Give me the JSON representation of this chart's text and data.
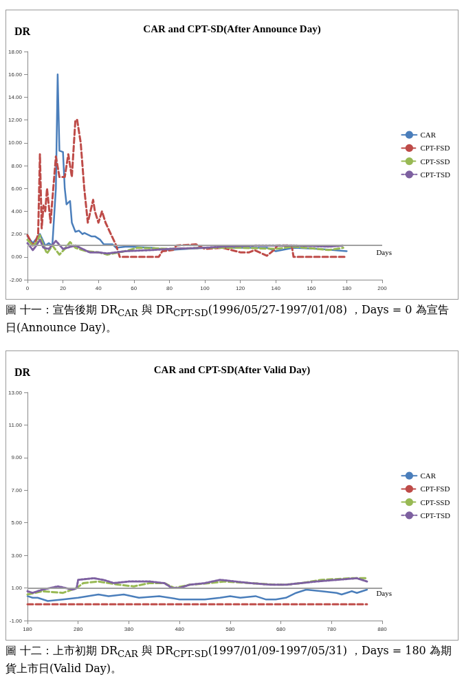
{
  "chart_data": [
    {
      "type": "line",
      "title": "CAR and CPT-SD(After Announce Day)",
      "ylabel": "DR",
      "xlabel": "Days",
      "xlim": [
        0,
        200
      ],
      "xticks": [
        0,
        20,
        40,
        60,
        80,
        100,
        120,
        140,
        160,
        180,
        200
      ],
      "ylim": [
        -2,
        18
      ],
      "yticks": [
        {
          "value": -2,
          "label": "-2.00"
        },
        {
          "value": 0,
          "label": "0.00"
        },
        {
          "value": 2,
          "label": "2.00"
        },
        {
          "value": 4,
          "label": "4.00"
        },
        {
          "value": 6,
          "label": "6.00"
        },
        {
          "value": 8,
          "label": "8.00"
        },
        {
          "value": 10,
          "label": "10.00"
        },
        {
          "value": 12,
          "label": "12.00"
        },
        {
          "value": 14,
          "label": "14.00"
        },
        {
          "value": 16,
          "label": "16.00"
        },
        {
          "value": 18,
          "label": "18.00"
        }
      ],
      "grid": false,
      "legend": "right",
      "marker": "none",
      "ref_lines": [
        {
          "axis": "y",
          "value": 1,
          "color": "#a0a0a0"
        }
      ],
      "annotations": [
        "圖 十一：宣告後期 DR$_{CAR}$ 與 DR$_{CPT-SD}$(1996/05/27-1997/01/08) ，Days = 0 為宣告日(Announce Day)。"
      ],
      "series": [
        {
          "name": "CAR",
          "color": "#4a7ebb",
          "line_style": "solid",
          "x": [
            0,
            3,
            5,
            7,
            10,
            12,
            14,
            16,
            17,
            18,
            20,
            21,
            22,
            24,
            25,
            27,
            29,
            31,
            32,
            36,
            38,
            41,
            43,
            48,
            50,
            56,
            70,
            80,
            100,
            120,
            135,
            140,
            150,
            165,
            180
          ],
          "values": [
            1.8,
            1.2,
            1.6,
            2.0,
            1.0,
            1.2,
            1.0,
            6,
            16,
            9.3,
            9.2,
            6,
            4.6,
            4.9,
            3,
            2.2,
            2.3,
            2.0,
            2.1,
            1.8,
            1.8,
            1.5,
            1.1,
            1.1,
            0.8,
            0.9,
            0.8,
            0.6,
            0.8,
            0.8,
            0.8,
            0.5,
            0.8,
            0.7,
            0.5
          ]
        },
        {
          "name": "CPT-FSD",
          "color": "#be4b48",
          "line_style": "dashed",
          "x": [
            0,
            3,
            5,
            6,
            7,
            8,
            9,
            10,
            11,
            13,
            14,
            16,
            18,
            21,
            23,
            25,
            27,
            28,
            30,
            32,
            34,
            37,
            38,
            40,
            42,
            44,
            47,
            50,
            52,
            74,
            76,
            82,
            84,
            95,
            100,
            110,
            120,
            125,
            128,
            135,
            139,
            141,
            149,
            150,
            180
          ],
          "values": [
            1.9,
            1,
            1.5,
            2,
            9,
            2.5,
            4.5,
            4,
            6,
            3,
            5,
            8.8,
            7,
            7,
            9,
            7,
            12,
            12,
            10,
            6,
            3,
            5,
            4,
            3,
            4,
            3,
            2,
            1,
            0,
            0,
            0.5,
            0.6,
            1.0,
            1.1,
            0.7,
            0.8,
            0.4,
            0.4,
            0.6,
            0.1,
            0.6,
            1.0,
            1.0,
            0,
            0
          ]
        },
        {
          "name": "CPT-SSD",
          "color": "#98b954",
          "line_style": "dashed",
          "x": [
            0,
            3,
            5,
            7,
            9,
            11,
            14,
            18,
            21,
            24,
            27,
            33,
            40,
            45,
            55,
            62,
            80,
            100,
            120,
            140,
            150,
            170,
            178
          ],
          "values": [
            1.5,
            1,
            1.2,
            1.9,
            1.0,
            0.3,
            1.0,
            0.2,
            0.7,
            1.3,
            0.8,
            0.5,
            0.4,
            0.2,
            0.5,
            0.8,
            0.7,
            0.8,
            0.8,
            0.7,
            0.9,
            0.6,
            0.8
          ]
        },
        {
          "name": "CPT-TSD",
          "color": "#7d60a0",
          "line_style": "dotted",
          "x": [
            0,
            3,
            5,
            7,
            9,
            12,
            16,
            20,
            27,
            35,
            40,
            45,
            55,
            70,
            80,
            100,
            110,
            130,
            150,
            170,
            178
          ],
          "values": [
            1.2,
            0.6,
            1.0,
            1.5,
            0.8,
            0.7,
            1.4,
            0.7,
            1.0,
            0.4,
            0.4,
            0.3,
            0.5,
            0.6,
            0.7,
            0.8,
            0.9,
            1.0,
            1.0,
            0.9,
            1.0
          ]
        }
      ]
    },
    {
      "type": "line",
      "title": "CAR and CPT-SD(After Valid Day)",
      "ylabel": "DR",
      "xlabel": "Days",
      "xlim": [
        180,
        880
      ],
      "xticks": [
        180,
        280,
        380,
        480,
        580,
        680,
        780,
        880
      ],
      "ylim": [
        -1,
        13
      ],
      "yticks": [
        {
          "value": -1,
          "label": "-1.00"
        },
        {
          "value": 1,
          "label": "1.00"
        },
        {
          "value": 3,
          "label": "3.00"
        },
        {
          "value": 5,
          "label": "5.00"
        },
        {
          "value": 7,
          "label": "7.00"
        },
        {
          "value": 9,
          "label": "9.00"
        },
        {
          "value": 11,
          "label": "11.00"
        },
        {
          "value": 13,
          "label": "13.00"
        }
      ],
      "grid": false,
      "legend": "right",
      "marker": "none",
      "ref_lines": [
        {
          "axis": "y",
          "value": 1,
          "color": "#a0a0a0"
        }
      ],
      "annotations": [
        "圖 十二：上市初期 DR$_{CAR}$ 與 DR$_{CPT-SD}$(1997/01/09-1997/05/31) ，Days = 180 為期貨上市日(Valid Day)。"
      ],
      "series": [
        {
          "name": "CAR",
          "color": "#4a7ebb",
          "line_style": "solid",
          "x": [
            180,
            190,
            200,
            220,
            250,
            280,
            320,
            340,
            370,
            400,
            440,
            480,
            500,
            530,
            560,
            580,
            600,
            630,
            650,
            670,
            690,
            710,
            730,
            760,
            790,
            800,
            820,
            830,
            850
          ],
          "values": [
            0.5,
            0.4,
            0.4,
            0.2,
            0.3,
            0.4,
            0.6,
            0.5,
            0.6,
            0.4,
            0.5,
            0.3,
            0.3,
            0.3,
            0.4,
            0.5,
            0.4,
            0.5,
            0.3,
            0.3,
            0.4,
            0.7,
            0.9,
            0.8,
            0.7,
            0.6,
            0.8,
            0.7,
            0.9
          ]
        },
        {
          "name": "CPT-FSD",
          "color": "#be4b48",
          "line_style": "dashed",
          "x": [
            180,
            850
          ],
          "values": [
            0,
            0
          ]
        },
        {
          "name": "CPT-SSD",
          "color": "#98b954",
          "line_style": "dashed",
          "x": [
            180,
            210,
            250,
            277,
            290,
            320,
            360,
            390,
            420,
            450,
            470,
            500,
            540,
            570,
            620,
            670,
            690,
            720,
            760,
            820,
            850
          ],
          "values": [
            0.6,
            0.8,
            0.7,
            1.0,
            1.3,
            1.4,
            1.2,
            1.1,
            1.3,
            1.3,
            1.0,
            1.2,
            1.3,
            1.4,
            1.3,
            1.2,
            1.2,
            1.3,
            1.5,
            1.6,
            1.6
          ]
        },
        {
          "name": "CPT-TSD",
          "color": "#7d60a0",
          "line_style": "dotted",
          "x": [
            180,
            190,
            210,
            240,
            270,
            277,
            280,
            310,
            330,
            350,
            380,
            420,
            450,
            465,
            480,
            500,
            530,
            560,
            590,
            620,
            660,
            690,
            720,
            750,
            790,
            830,
            850
          ],
          "values": [
            0.8,
            0.7,
            0.9,
            1.1,
            0.9,
            1.0,
            1.5,
            1.6,
            1.5,
            1.3,
            1.4,
            1.4,
            1.3,
            1.0,
            1.0,
            1.2,
            1.3,
            1.5,
            1.4,
            1.3,
            1.2,
            1.2,
            1.3,
            1.4,
            1.5,
            1.6,
            1.4
          ]
        }
      ]
    }
  ]
}
